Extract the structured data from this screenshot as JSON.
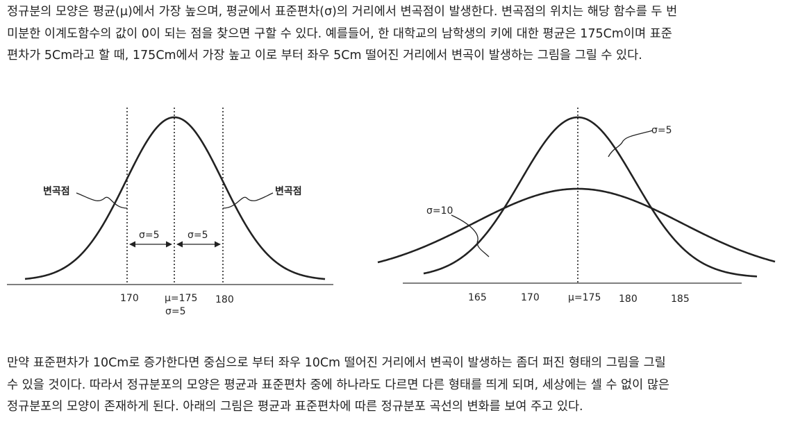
{
  "paragraph_top": [
    "정규분의 모양은 평균(μ)에서 가장 높으며, 평균에서 표준편차(σ)의 거리에서 변곡점이 발생한다. 변곡점의 위치는 해당 함수를 두 번",
    "미분한 이계도함수의 값이 0이 되는 점을 찾으면 구할 수 있다.  예를들어, 한 대학교의 남학생의  키에 대한 평균은 175Cm이며 표준",
    "편차가 5Cm라고 할 때, 175Cm에서 가장 높고 이로 부터 좌우 5Cm 떨어진 거리에서 변곡이 발생하는  그림을 그릴 수 있다."
  ],
  "paragraph_bottom": [
    "만약 표준편차가 10Cm로 증가한다면 중심으로 부터 좌우 10Cm 떨어진 거리에서 변곡이 발생하는 좀더 퍼진 형태의 그림을 그릴",
    "수 있을 것이다. 따라서 정규분포의 모양은 평균과 표준편차 중에 하나라도 다르면 다른 형태를 띄게 되며, 세상에는 셀 수 없이 많은",
    "정규분포의 모양이 존재하게 된다. 아래의 그림은 평균과 표준편차에 따른 정규분포 곡선의 변화를 보여 주고 있다."
  ],
  "figure_left": {
    "inflection_left": "변곡점",
    "inflection_right": "변곡점",
    "sigma_left": "σ=5",
    "sigma_right": "σ=5",
    "tick_170": "170",
    "tick_mu": "μ=175",
    "tick_180": "180",
    "tick_sigma": "σ=5"
  },
  "figure_right": {
    "label_sigma5": "σ=5",
    "label_sigma10": "σ=10",
    "ticks": [
      "165",
      "170",
      "μ=175",
      "180",
      "185"
    ]
  }
}
